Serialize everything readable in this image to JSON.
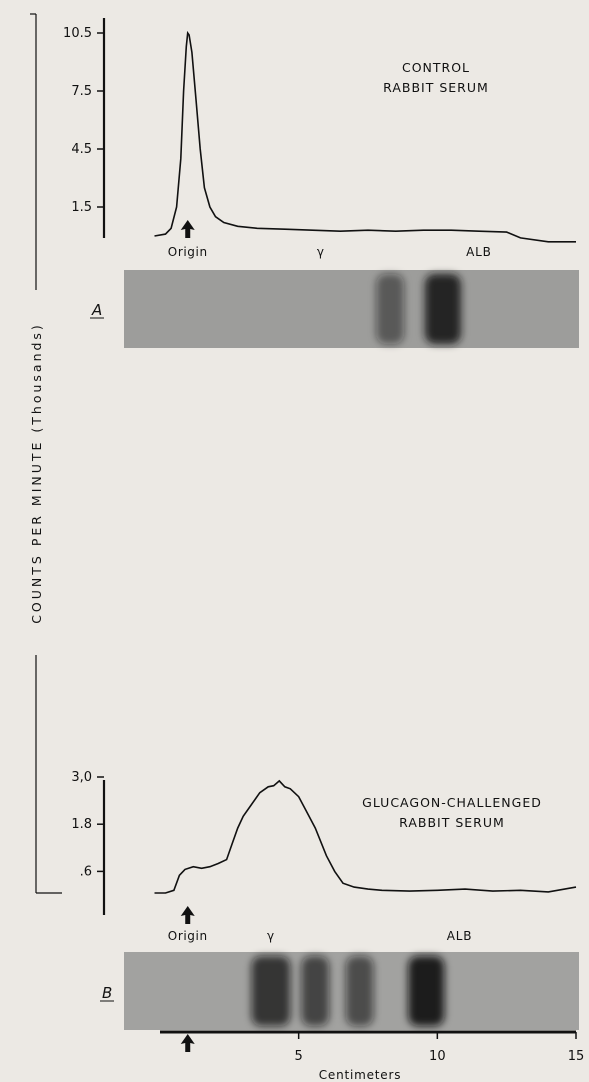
{
  "chart_data": [
    {
      "type": "line",
      "panel": "A",
      "title": [
        "CONTROL",
        "RABBIT SERUM"
      ],
      "ylabel": "COUNTS PER MINUTE (Thousands)",
      "yticks": [
        {
          "value": 10.5,
          "label": "10.5"
        },
        {
          "value": 7.5,
          "label": "7.5"
        },
        {
          "value": 4.5,
          "label": "4.5"
        },
        {
          "value": 1.5,
          "label": "1.5"
        }
      ],
      "ylim": [
        0,
        10.5
      ],
      "xlim": [
        0,
        15
      ],
      "annotations": [
        {
          "text": "Origin",
          "x": 1.0
        },
        {
          "text": "γ",
          "x": 5.8
        },
        {
          "text": "ALB",
          "x": 11.5
        }
      ],
      "origin_x": 1.0,
      "series": [
        {
          "x": [
            -0.2,
            0.2,
            0.4,
            0.6,
            0.75,
            0.85,
            0.95,
            1.0,
            1.05,
            1.15,
            1.3,
            1.45,
            1.6,
            1.8,
            2.0,
            2.3,
            2.8,
            3.5,
            4.5,
            5.5,
            6.5,
            7.5,
            8.5,
            9.5,
            10.5,
            11.5,
            12.5,
            13.0,
            14.0,
            15.0
          ],
          "y": [
            0,
            0.1,
            0.4,
            1.5,
            4.0,
            7.5,
            9.8,
            10.5,
            10.4,
            9.5,
            7.0,
            4.5,
            2.5,
            1.5,
            1.0,
            0.7,
            0.5,
            0.4,
            0.35,
            0.3,
            0.25,
            0.3,
            0.25,
            0.3,
            0.3,
            0.25,
            0.2,
            -0.1,
            -0.3,
            -0.3
          ]
        }
      ],
      "strip_label": "A",
      "strip_bands": [
        {
          "center": 8.3,
          "width": 1.0,
          "intensity": 0.5
        },
        {
          "center": 10.2,
          "width": 1.3,
          "intensity": 0.9
        }
      ]
    },
    {
      "type": "line",
      "panel": "B",
      "title": [
        "GLUCAGON-CHALLENGED",
        "RABBIT SERUM"
      ],
      "yticks": [
        {
          "value": 3.0,
          "label": "3,0"
        },
        {
          "value": 1.8,
          "label": "1.8"
        },
        {
          "value": 0.6,
          "label": ".6"
        }
      ],
      "ylim": [
        0,
        3.0
      ],
      "xlim": [
        0,
        15
      ],
      "xlabel": "Centimeters",
      "xticks": [
        {
          "value": 5,
          "label": "5"
        },
        {
          "value": 10,
          "label": "10"
        },
        {
          "value": 15,
          "label": "15"
        }
      ],
      "annotations": [
        {
          "text": "Origin",
          "x": 1.0
        },
        {
          "text": "γ",
          "x": 4.0
        },
        {
          "text": "ALB",
          "x": 10.8
        }
      ],
      "origin_x": 1.0,
      "series": [
        {
          "x": [
            -0.2,
            0.2,
            0.5,
            0.7,
            0.9,
            1.2,
            1.5,
            1.8,
            2.1,
            2.4,
            2.6,
            2.8,
            3.0,
            3.3,
            3.6,
            3.9,
            4.1,
            4.3,
            4.5,
            4.7,
            5.0,
            5.3,
            5.6,
            6.0,
            6.3,
            6.6,
            7.0,
            7.5,
            8.0,
            9.0,
            10.0,
            11.0,
            12.0,
            13.0,
            14.0,
            15.0
          ],
          "y": [
            0.05,
            0.05,
            0.12,
            0.5,
            0.65,
            0.72,
            0.68,
            0.72,
            0.8,
            0.9,
            1.3,
            1.7,
            2.0,
            2.3,
            2.6,
            2.75,
            2.78,
            2.9,
            2.75,
            2.7,
            2.5,
            2.1,
            1.7,
            1.0,
            0.6,
            0.3,
            0.2,
            0.15,
            0.12,
            0.1,
            0.12,
            0.15,
            0.1,
            0.12,
            0.08,
            0.2
          ]
        }
      ],
      "strip_label": "B",
      "strip_bands": [
        {
          "center": 4.0,
          "width": 1.4,
          "intensity": 0.75
        },
        {
          "center": 5.6,
          "width": 1.0,
          "intensity": 0.65
        },
        {
          "center": 7.2,
          "width": 1.0,
          "intensity": 0.6
        },
        {
          "center": 9.6,
          "width": 1.3,
          "intensity": 0.9
        }
      ]
    }
  ]
}
